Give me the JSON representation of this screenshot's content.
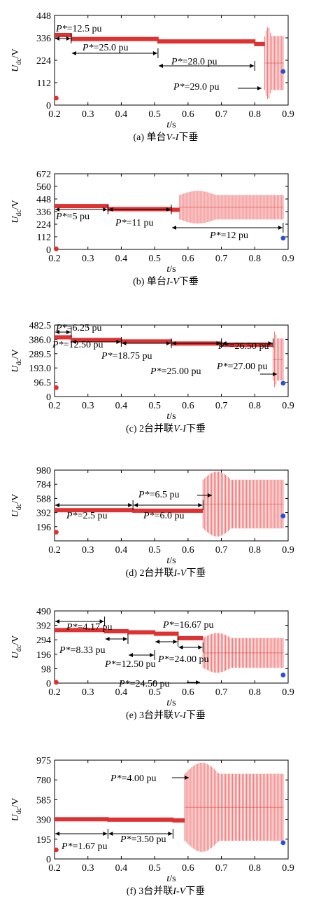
{
  "figure": {
    "colors": {
      "trace": "#e03030",
      "osc": "#f07a7a",
      "marker": "#2b4fd8",
      "axis": "#000000",
      "arrow": "#000000"
    }
  },
  "chart_data": [
    {
      "type": "line",
      "caption": "(a) 单台V-I下垂",
      "xlabel": "t/s",
      "ylabel": "Udc/V",
      "xlim": [
        0.2,
        0.9
      ],
      "ylim": [
        0,
        448
      ],
      "xticks": [
        "0.2",
        "0.3",
        "0.4",
        "0.5",
        "0.6",
        "0.7",
        "0.8",
        "0.9"
      ],
      "yticks": [
        "0",
        "112",
        "224",
        "336",
        "448"
      ],
      "steps": [
        [
          0.2,
          0.25,
          350
        ],
        [
          0.25,
          0.51,
          330
        ],
        [
          0.51,
          0.8,
          318
        ],
        [
          0.8,
          0.83,
          305
        ]
      ],
      "oscillation": {
        "t0": 0.83,
        "t1": 0.885,
        "vmin": 30,
        "vmax": 390
      },
      "markers": [
        {
          "t": 0.205,
          "v": 35,
          "color": "red"
        },
        {
          "t": 0.885,
          "v": 168,
          "color": "blue"
        }
      ],
      "annotations": [
        {
          "text": "P*=12.5 pu",
          "from": 0.2,
          "to": 0.25
        },
        {
          "text": "P*=25.0 pu",
          "from": 0.25,
          "to": 0.51
        },
        {
          "text": "P*=28.0 pu",
          "from": 0.51,
          "to": 0.8
        },
        {
          "text": "P*=29.0 pu",
          "pointer": true
        }
      ]
    },
    {
      "type": "line",
      "caption": "(b) 单台I-V下垂",
      "xlabel": "t/s",
      "ylabel": "Udc/V",
      "xlim": [
        0.2,
        0.9
      ],
      "ylim": [
        0,
        672
      ],
      "xticks": [
        "0.2",
        "0.3",
        "0.4",
        "0.5",
        "0.6",
        "0.7",
        "0.8",
        "0.9"
      ],
      "yticks": [
        "0",
        "112",
        "224",
        "336",
        "448",
        "560",
        "672"
      ],
      "steps": [
        [
          0.2,
          0.36,
          385
        ],
        [
          0.36,
          0.55,
          358
        ],
        [
          0.55,
          0.575,
          352
        ]
      ],
      "oscillation": {
        "t0": 0.575,
        "t1": 0.885,
        "vmin": 230,
        "vmax": 520
      },
      "markers": [
        {
          "t": 0.205,
          "v": 5,
          "color": "red"
        },
        {
          "t": 0.885,
          "v": 100,
          "color": "blue"
        }
      ],
      "annotations": [
        {
          "text": "P*=5 pu",
          "from": 0.2,
          "to": 0.36
        },
        {
          "text": "P*=11 pu",
          "from": 0.36,
          "to": 0.55
        },
        {
          "text": "P*=12 pu",
          "from": 0.55,
          "to": 0.885
        }
      ]
    },
    {
      "type": "line",
      "caption": "(c) 2台并联V-I下垂",
      "xlabel": "t/s",
      "ylabel": "Udc/V",
      "xlim": [
        0.2,
        0.9
      ],
      "ylim": [
        0,
        482.5
      ],
      "xticks": [
        "0.2",
        "0.3",
        "0.4",
        "0.5",
        "0.6",
        "0.7",
        "0.8",
        "0.9"
      ],
      "yticks": [
        "0",
        "96.5",
        "193.0",
        "289.5",
        "386.0",
        "482.5"
      ],
      "steps": [
        [
          0.2,
          0.25,
          400
        ],
        [
          0.25,
          0.4,
          382
        ],
        [
          0.4,
          0.55,
          372
        ],
        [
          0.55,
          0.7,
          358
        ],
        [
          0.7,
          0.855,
          350
        ]
      ],
      "oscillation": {
        "t0": 0.855,
        "t1": 0.885,
        "vmin": 60,
        "vmax": 440
      },
      "markers": [
        {
          "t": 0.205,
          "v": 60,
          "color": "red"
        },
        {
          "t": 0.885,
          "v": 90,
          "color": "blue"
        }
      ],
      "annotations": [
        {
          "text": "P*=6.25 pu",
          "from": 0.2,
          "to": 0.25
        },
        {
          "text": "P*=12.50 pu",
          "from": 0.25,
          "to": 0.4
        },
        {
          "text": "P*=18.75 pu",
          "from": 0.4,
          "to": 0.55
        },
        {
          "text": "P*=25.00 pu",
          "from": 0.55,
          "to": 0.7
        },
        {
          "text": "P*=26.50 pu",
          "from": 0.7,
          "to": 0.855
        },
        {
          "text": "P*=27.00 pu",
          "pointer": true
        }
      ]
    },
    {
      "type": "line",
      "caption": "(d) 2台并联I-V下垂",
      "xlabel": "t/s",
      "ylabel": "Udc/V",
      "xlim": [
        0.2,
        0.9
      ],
      "ylim": [
        0,
        980
      ],
      "xticks": [
        "0.2",
        "0.3",
        "0.4",
        "0.5",
        "0.6",
        "0.7",
        "0.8",
        "0.9"
      ],
      "yticks": [
        "196",
        "392",
        "588",
        "784",
        "980"
      ],
      "steps": [
        [
          0.2,
          0.435,
          425
        ],
        [
          0.435,
          0.645,
          418
        ]
      ],
      "oscillation": {
        "t0": 0.645,
        "t1": 0.885,
        "vmin": 60,
        "vmax": 960
      },
      "markers": [
        {
          "t": 0.205,
          "v": 120,
          "color": "red"
        },
        {
          "t": 0.885,
          "v": 345,
          "color": "blue"
        }
      ],
      "annotations": [
        {
          "text": "P*=2.5 pu",
          "from": 0.2,
          "to": 0.435
        },
        {
          "text": "P*=6.0 pu",
          "from": 0.435,
          "to": 0.645
        },
        {
          "text": "P*=6.5 pu",
          "pointer": true
        }
      ]
    },
    {
      "type": "line",
      "caption": "(e) 3台并联V-I下垂",
      "xlabel": "t/s",
      "ylabel": "Udc/V",
      "xlim": [
        0.2,
        0.9
      ],
      "ylim": [
        0,
        490
      ],
      "xticks": [
        "0.2",
        "0.3",
        "0.4",
        "0.5",
        "0.6",
        "0.7",
        "0.8",
        "0.9"
      ],
      "yticks": [
        "0",
        "98",
        "196",
        "294",
        "392",
        "490"
      ],
      "steps": [
        [
          0.2,
          0.35,
          360
        ],
        [
          0.35,
          0.42,
          352
        ],
        [
          0.42,
          0.5,
          345
        ],
        [
          0.5,
          0.57,
          335
        ],
        [
          0.57,
          0.645,
          305
        ]
      ],
      "oscillation": {
        "t0": 0.645,
        "t1": 0.885,
        "vmin": 70,
        "vmax": 340
      },
      "markers": [
        {
          "t": 0.205,
          "v": 5,
          "color": "red"
        },
        {
          "t": 0.885,
          "v": 55,
          "color": "blue"
        }
      ],
      "annotations": [
        {
          "text": "P*=4.17 pu",
          "from": 0.2,
          "to": 0.35
        },
        {
          "text": "P*=8.33 pu",
          "from": 0.35,
          "to": 0.42
        },
        {
          "text": "P*=12.50 pu",
          "from": 0.42,
          "to": 0.5
        },
        {
          "text": "P*=16.67 pu",
          "from": 0.5,
          "to": 0.57
        },
        {
          "text": "P*=24.00 pu",
          "from": 0.57,
          "to": 0.645
        },
        {
          "text": "P*=24.50 pu",
          "pointer": true
        }
      ]
    },
    {
      "type": "line",
      "caption": "(f) 3台并联I-V下垂",
      "xlabel": "t/s",
      "ylabel": "Udc/V",
      "xlim": [
        0.2,
        0.9
      ],
      "ylim": [
        0,
        975
      ],
      "xticks": [
        "0.2",
        "0.3",
        "0.4",
        "0.5",
        "0.6",
        "0.7",
        "0.8",
        "0.9"
      ],
      "yticks": [
        "0",
        "195",
        "390",
        "585",
        "780",
        "975"
      ],
      "steps": [
        [
          0.2,
          0.36,
          392
        ],
        [
          0.36,
          0.555,
          388
        ],
        [
          0.555,
          0.59,
          380
        ]
      ],
      "oscillation": {
        "t0": 0.59,
        "t1": 0.885,
        "vmin": 70,
        "vmax": 950
      },
      "markers": [
        {
          "t": 0.205,
          "v": 90,
          "color": "red"
        },
        {
          "t": 0.885,
          "v": 160,
          "color": "blue"
        }
      ],
      "annotations": [
        {
          "text": "P*=1.67 pu",
          "from": 0.2,
          "to": 0.36
        },
        {
          "text": "P*=3.50 pu",
          "from": 0.36,
          "to": 0.555
        },
        {
          "text": "P*=4.00 pu",
          "pointer": true
        }
      ]
    }
  ]
}
